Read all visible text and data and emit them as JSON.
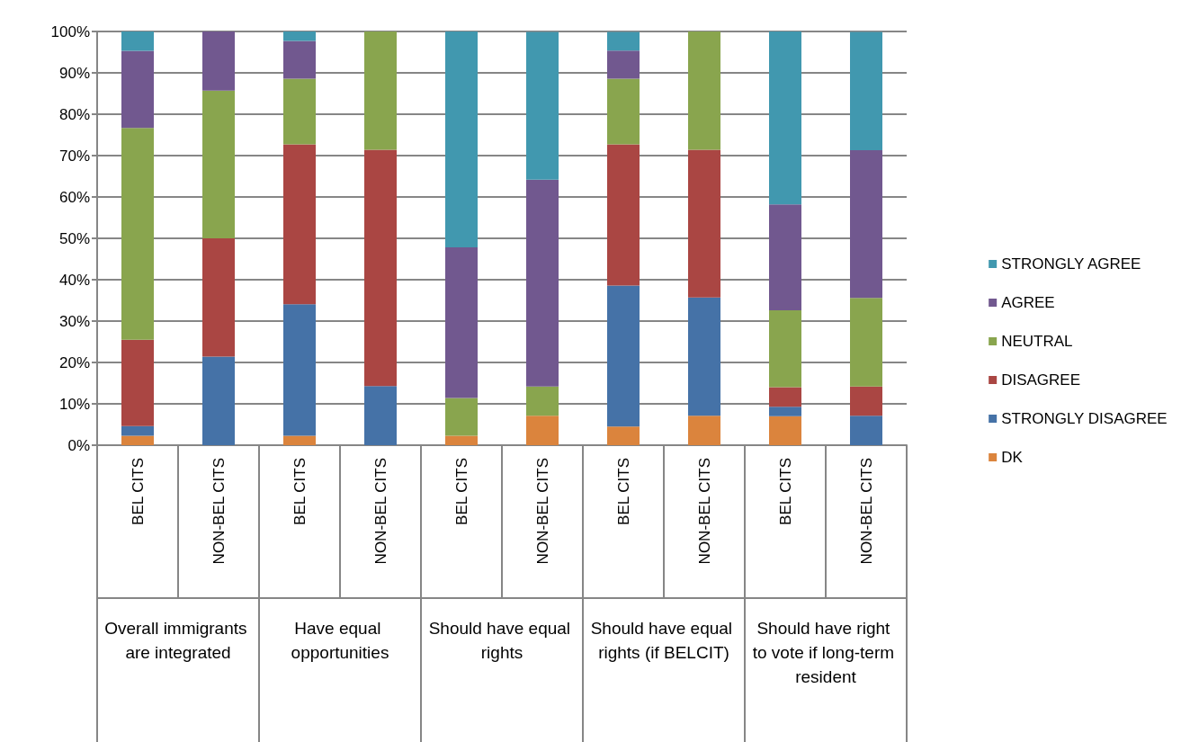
{
  "chart_data": {
    "type": "bar",
    "stacked": true,
    "categories": [
      "BEL CITS",
      "NON-BEL CITS",
      "BEL CITS",
      "NON-BEL CITS",
      "BEL CITS",
      "NON-BEL CITS",
      "BEL CITS",
      "NON-BEL CITS",
      "BEL CITS",
      "NON-BEL CITS"
    ],
    "annotations": [
      "Overall immigrants are integrated",
      "Have equal opportunities",
      "Should have equal rights",
      "Should have equal rights (if BELCIT)",
      "Should have right to vote if long-term resident"
    ],
    "series": [
      {
        "name": "DK",
        "color": "#db843d",
        "values": [
          2.3,
          0,
          2.3,
          0,
          2.3,
          7.1,
          4.5,
          7.1,
          7.0,
          0
        ]
      },
      {
        "name": "STRONGLY DISAGREE",
        "color": "#4572a7",
        "values": [
          2.3,
          21.4,
          31.8,
          14.3,
          0,
          0,
          34.1,
          28.6,
          2.3,
          7.1
        ]
      },
      {
        "name": "DISAGREE",
        "color": "#aa4643",
        "values": [
          20.9,
          28.6,
          38.6,
          57.1,
          0,
          0,
          34.1,
          35.7,
          4.7,
          7.1
        ]
      },
      {
        "name": "NEUTRAL",
        "color": "#89a54e",
        "values": [
          51.2,
          35.7,
          15.9,
          28.6,
          9.1,
          7.1,
          15.9,
          28.6,
          18.6,
          21.4
        ]
      },
      {
        "name": "AGREE",
        "color": "#71588f",
        "values": [
          18.6,
          14.3,
          9.1,
          0,
          36.4,
          50.0,
          6.8,
          0,
          25.6,
          35.7
        ]
      },
      {
        "name": "STRONGLY AGREE",
        "color": "#4198af",
        "values": [
          4.7,
          0,
          2.3,
          0,
          52.3,
          35.7,
          4.5,
          0,
          41.9,
          28.6
        ]
      }
    ],
    "ylim": [
      0,
      100
    ],
    "yticks": [
      {
        "value": 0,
        "label": "0%"
      },
      {
        "value": 10,
        "label": "10%"
      },
      {
        "value": 20,
        "label": "20%"
      },
      {
        "value": 30,
        "label": "30%"
      },
      {
        "value": 40,
        "label": "40%"
      },
      {
        "value": 50,
        "label": "50%"
      },
      {
        "value": 60,
        "label": "60%"
      },
      {
        "value": 70,
        "label": "70%"
      },
      {
        "value": 80,
        "label": "80%"
      },
      {
        "value": 90,
        "label": "90%"
      },
      {
        "value": 100,
        "label": "100%"
      }
    ],
    "grid": "y",
    "legend": "right"
  }
}
